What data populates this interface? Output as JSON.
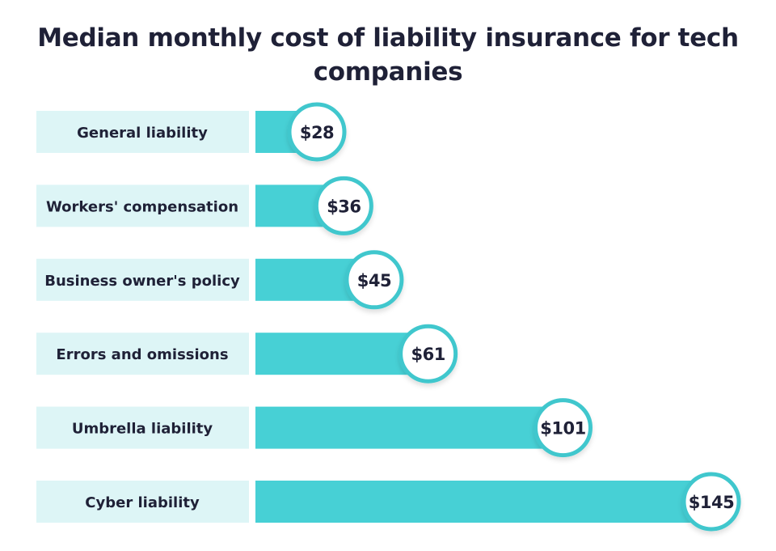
{
  "chart_data": {
    "type": "bar",
    "orientation": "horizontal",
    "title": "Median monthly cost of liability insurance for tech companies",
    "categories": [
      "General liability",
      "Workers' compensation",
      "Business owner's policy",
      "Errors and omissions",
      "Umbrella liability",
      "Cyber liability"
    ],
    "values": [
      28,
      36,
      45,
      61,
      101,
      145
    ],
    "data_labels": [
      "$28",
      "$36",
      "$45",
      "$61",
      "$101",
      "$145"
    ],
    "xlabel": "",
    "ylabel": "",
    "grid": false,
    "colors": {
      "bar": "#47d0d5",
      "label_bg": "#ddf5f6",
      "circle_border": "#3fc7cd",
      "text": "#1f2137"
    }
  }
}
